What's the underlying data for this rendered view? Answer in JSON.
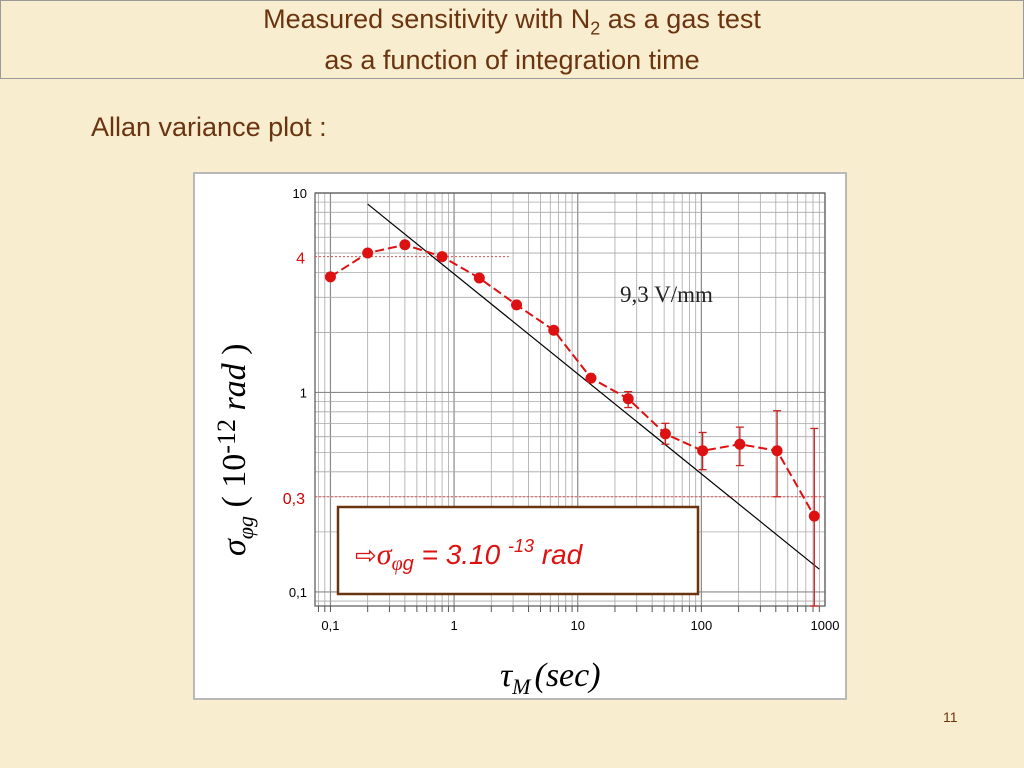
{
  "title": {
    "line1_pre": "Measured sensitivity with N",
    "line1_sub": "2",
    "line1_post": " as a gas test",
    "line2": "as a function of integration time"
  },
  "subtitle": "Allan variance plot :",
  "page_number": "11",
  "colors": {
    "title_text": "#6b3410",
    "background": "#f8eecf",
    "series": "#dd1111",
    "fit_line": "#000000",
    "callout_border": "#6b3410"
  },
  "chart_data": {
    "type": "scatter",
    "x_scale": "log",
    "y_scale": "log",
    "xlim": [
      0.075,
      1000
    ],
    "ylim": [
      0.085,
      10
    ],
    "grid": true,
    "x_ticks": [
      0.1,
      1,
      10,
      100,
      1000
    ],
    "x_tick_labels": [
      "0,1",
      "1",
      "10",
      "100",
      "1000"
    ],
    "y_ticks": [
      0.1,
      1,
      10
    ],
    "y_tick_labels": [
      "0,1",
      "1",
      "10"
    ],
    "xlabel": {
      "tau": "τ",
      "sub": "M",
      "unit": "(sec)"
    },
    "ylabel": {
      "sigma": "σ",
      "sub": "φg",
      "paren_open": "(",
      "base": "10",
      "exp": "-12",
      "unit": "rad",
      "paren_close": ")"
    },
    "series": [
      {
        "x": [
          0.1,
          0.2,
          0.4,
          0.8,
          1.6,
          3.2,
          6.4,
          12.8,
          25.6,
          51.2,
          102.4,
          204.8,
          409.6,
          819.2
        ],
        "y": [
          3.8,
          5.0,
          5.5,
          4.8,
          3.75,
          2.75,
          2.05,
          1.18,
          0.93,
          0.62,
          0.51,
          0.55,
          0.51,
          0.24
        ],
        "err_low": [
          0,
          0,
          0,
          0,
          0,
          0,
          0,
          0,
          0.84,
          0.55,
          0.41,
          0.43,
          0.3,
          0.085
        ],
        "err_high": [
          0,
          0,
          0,
          0,
          0,
          0,
          0,
          0,
          1.01,
          0.7,
          0.63,
          0.67,
          0.81,
          0.66
        ]
      }
    ],
    "fit_line": {
      "x": [
        0.2,
        900
      ],
      "y": [
        8.8,
        0.13
      ]
    },
    "reference_lines": [
      {
        "label": "4",
        "y": 4.8
      },
      {
        "label": "0,3",
        "y": 0.3
      }
    ],
    "annotation": "9,3 V/mm",
    "callout": {
      "arrow": "⇨",
      "sigma": "σ",
      "sub_phi": "φ",
      "sub_g": "g",
      "text": " = 3.10 ",
      "exp": "-13",
      "unit": " rad"
    }
  }
}
